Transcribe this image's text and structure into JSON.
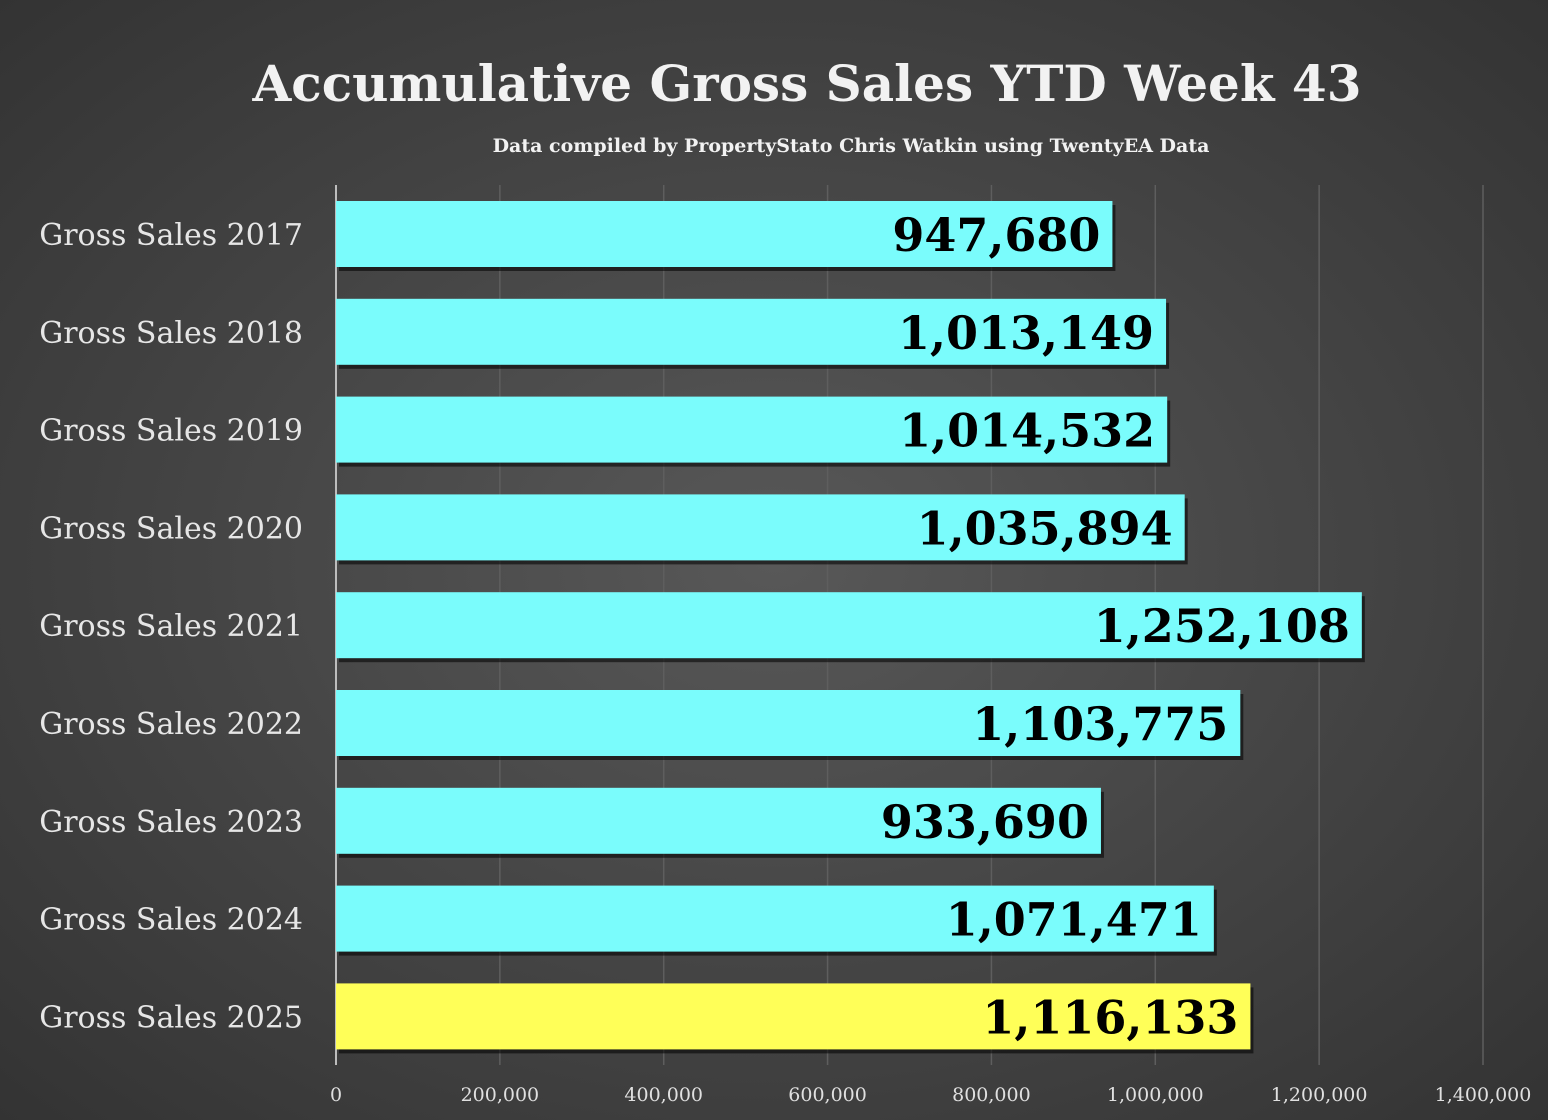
{
  "chart_data": {
    "type": "bar",
    "orientation": "horizontal",
    "title": "Accumulative Gross Sales YTD Week 43",
    "subtitle": "Data compiled by PropertyStato Chris Watkin using TwentyEA Data",
    "categories": [
      "Gross Sales 2017",
      "Gross Sales 2018",
      "Gross Sales 2019",
      "Gross Sales 2020",
      "Gross Sales 2021",
      "Gross Sales 2022",
      "Gross Sales 2023",
      "Gross Sales 2024",
      "Gross Sales 2025"
    ],
    "values": [
      947680,
      1013149,
      1014532,
      1035894,
      1252108,
      1103775,
      933690,
      1071471,
      1116133
    ],
    "data_labels": [
      "947,680",
      "1,013,149",
      "1,014,532",
      "1,035,894",
      "1,252,108",
      "1,103,775",
      "933,690",
      "1,071,471",
      "1,116,133"
    ],
    "colors": [
      "#7afcfc",
      "#7afcfc",
      "#7afcfc",
      "#7afcfc",
      "#7afcfc",
      "#7afcfc",
      "#7afcfc",
      "#7afcfc",
      "#ffff58"
    ],
    "xlim": [
      0,
      1400000
    ],
    "xticks": [
      0,
      200000,
      400000,
      600000,
      800000,
      1000000,
      1200000,
      1400000
    ],
    "xtick_labels": [
      "0",
      "200,000",
      "400,000",
      "600,000",
      "800,000",
      "1,000,000",
      "1,200,000",
      "1,400,000"
    ],
    "xlabel": "",
    "ylabel": "",
    "grid": "vertical",
    "legend": "none"
  }
}
